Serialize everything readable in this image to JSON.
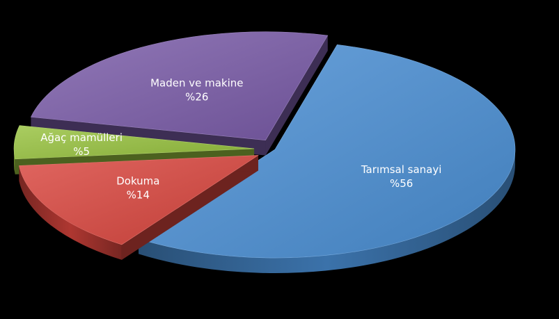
{
  "chart_data": {
    "type": "pie",
    "style": "3d-exploded",
    "background": "#000000",
    "label_color": "#ffffff",
    "slices": [
      {
        "name": "Tarımsal sanayi",
        "value": 56,
        "label": "%56",
        "color": "#4a8fd4"
      },
      {
        "name": "Dokuma",
        "value": 14,
        "label": "%14",
        "color": "#d9453d"
      },
      {
        "name": "Ağaç mamülleri",
        "value": 5,
        "label": "%5",
        "color": "#97c23e"
      },
      {
        "name": "Maden ve makine",
        "value": 26,
        "label": "%26",
        "color": "#7a5ba8"
      }
    ]
  }
}
